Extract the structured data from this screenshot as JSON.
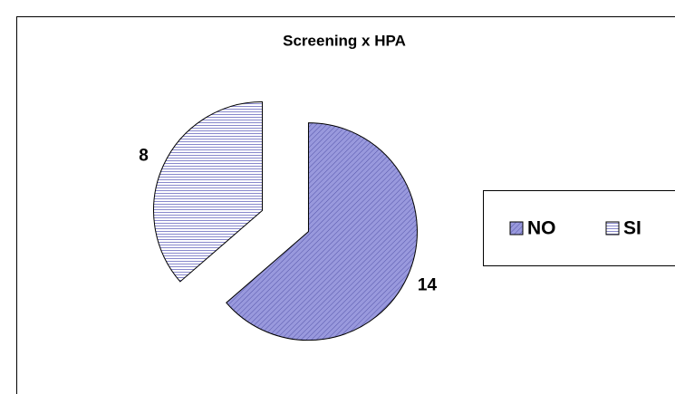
{
  "chart_data": {
    "type": "pie",
    "title": "Screening x HPA",
    "categories": [
      "NO",
      "SI"
    ],
    "values": [
      14,
      8
    ],
    "colors": [
      "#9999dd",
      "#ffffff"
    ],
    "legend": "right"
  }
}
